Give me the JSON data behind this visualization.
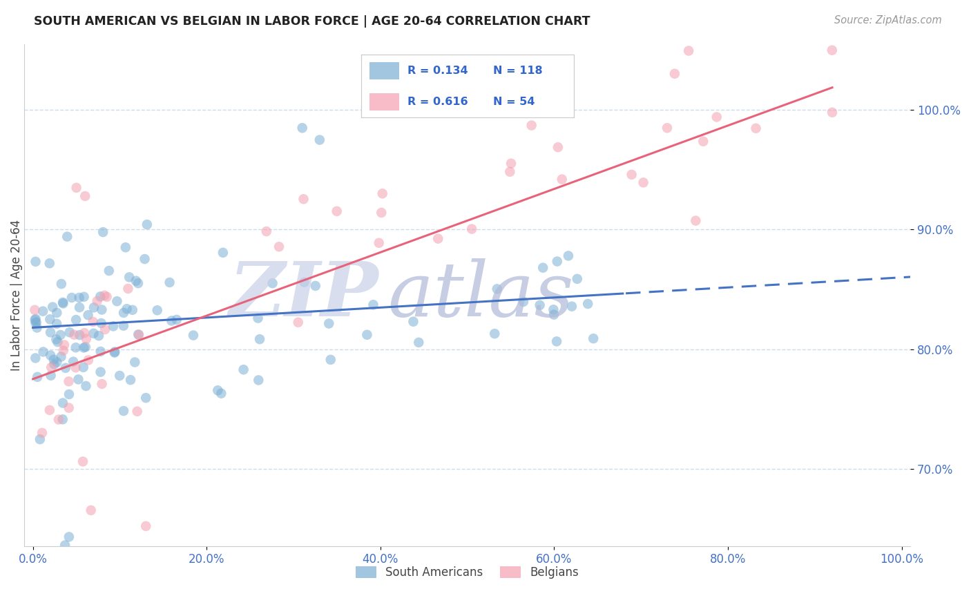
{
  "title": "SOUTH AMERICAN VS BELGIAN IN LABOR FORCE | AGE 20-64 CORRELATION CHART",
  "source": "Source: ZipAtlas.com",
  "ylabel": "In Labor Force | Age 20-64",
  "xlim": [
    -0.01,
    1.01
  ],
  "ylim": [
    0.635,
    1.055
  ],
  "xticks": [
    0.0,
    0.2,
    0.4,
    0.6,
    0.8,
    1.0
  ],
  "xtick_labels": [
    "0.0%",
    "20.0%",
    "40.0%",
    "60.0%",
    "80.0%",
    "100.0%"
  ],
  "ytick_labels": [
    "70.0%",
    "80.0%",
    "90.0%",
    "100.0%"
  ],
  "ytick_values": [
    0.7,
    0.8,
    0.9,
    1.0
  ],
  "blue_color": "#7BAFD4",
  "pink_color": "#F4A0B0",
  "blue_line_color": "#4472C4",
  "pink_line_color": "#E8637A",
  "legend_text_color": "#3366CC",
  "tick_color": "#4472C4",
  "grid_color": "#C8D8E8",
  "background_color": "#FFFFFF",
  "watermark_zip_color": "#C8D0E8",
  "watermark_atlas_color": "#B0BAD8",
  "blue_r": "R = 0.134",
  "blue_n": "N = 118",
  "pink_r": "R = 0.616",
  "pink_n": "N = 54",
  "blue_line_x_solid_end": 0.68,
  "blue_line_intercept": 0.818,
  "blue_line_slope": 0.042,
  "pink_line_intercept": 0.775,
  "pink_line_slope": 0.265,
  "pink_line_x_end": 0.92
}
